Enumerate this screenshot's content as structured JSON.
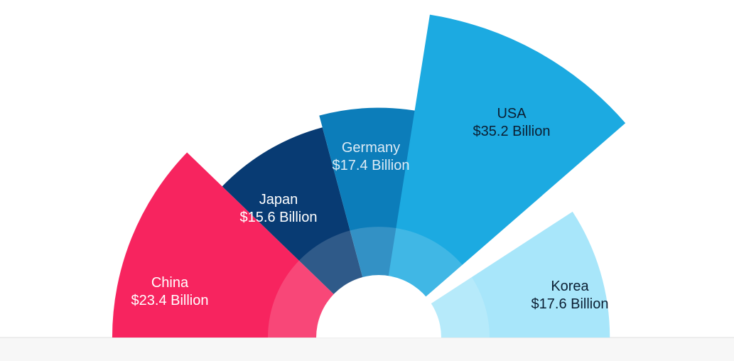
{
  "chart_data": {
    "type": "pie",
    "variant": "polar-area (rose) half-circle",
    "categories": [
      "China",
      "Japan",
      "Germany",
      "USA",
      "Korea"
    ],
    "values": [
      23.4,
      15.6,
      17.4,
      35.2,
      17.6
    ],
    "value_labels": [
      "$23.4 Billion",
      "$15.6 Billion",
      "$17.4 Billion",
      "$35.2 Billion",
      "$17.6 Billion"
    ],
    "colors": [
      "#F7245F",
      "#083B73",
      "#0C7DBA",
      "#1CAAE1",
      "#A8E6FA"
    ],
    "label_colors": [
      "#FFFFFF",
      "#FFFFFF",
      "#DDEBF5",
      "#0B1F33",
      "#0B1F33"
    ],
    "legend": "none",
    "title": ""
  }
}
